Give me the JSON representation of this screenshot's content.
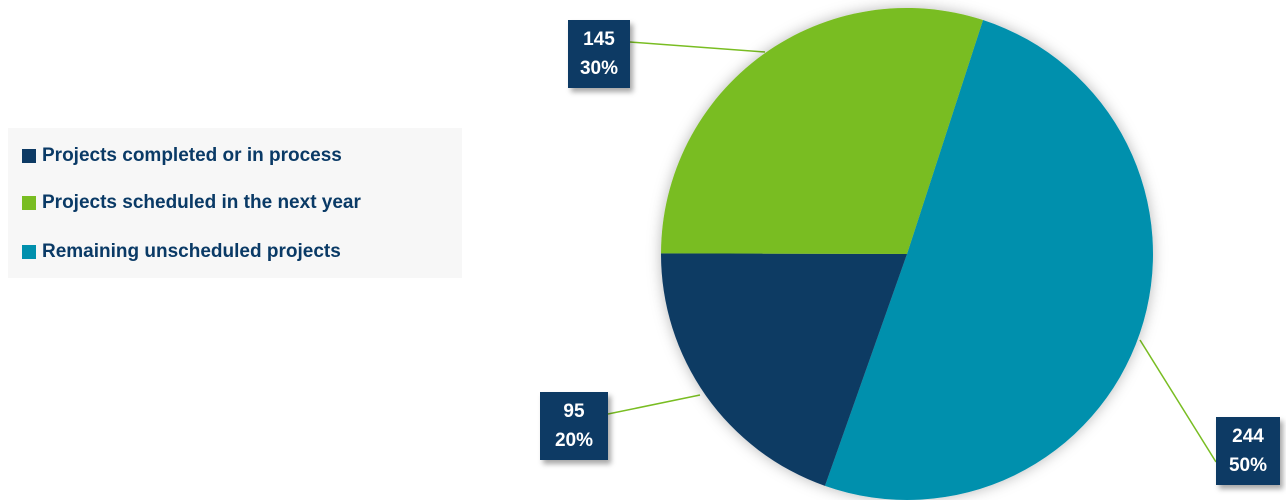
{
  "chart_data": {
    "type": "pie",
    "series": [
      {
        "name": "Projects completed or in process",
        "value": 95,
        "percent": "20%",
        "color": "#0d3a64"
      },
      {
        "name": "Projects scheduled in the next year",
        "value": 145,
        "percent": "30%",
        "color": "#79bd22"
      },
      {
        "name": "Remaining unscheduled projects",
        "value": 244,
        "percent": "50%",
        "color": "#0090ad"
      }
    ],
    "start_angle_deg": 18,
    "direction": "clockwise",
    "slice_order": [
      "Remaining unscheduled projects",
      "Projects completed or in process",
      "Projects scheduled in the next year"
    ],
    "legend_position": "left",
    "leader_line_color": "#79bd22"
  }
}
